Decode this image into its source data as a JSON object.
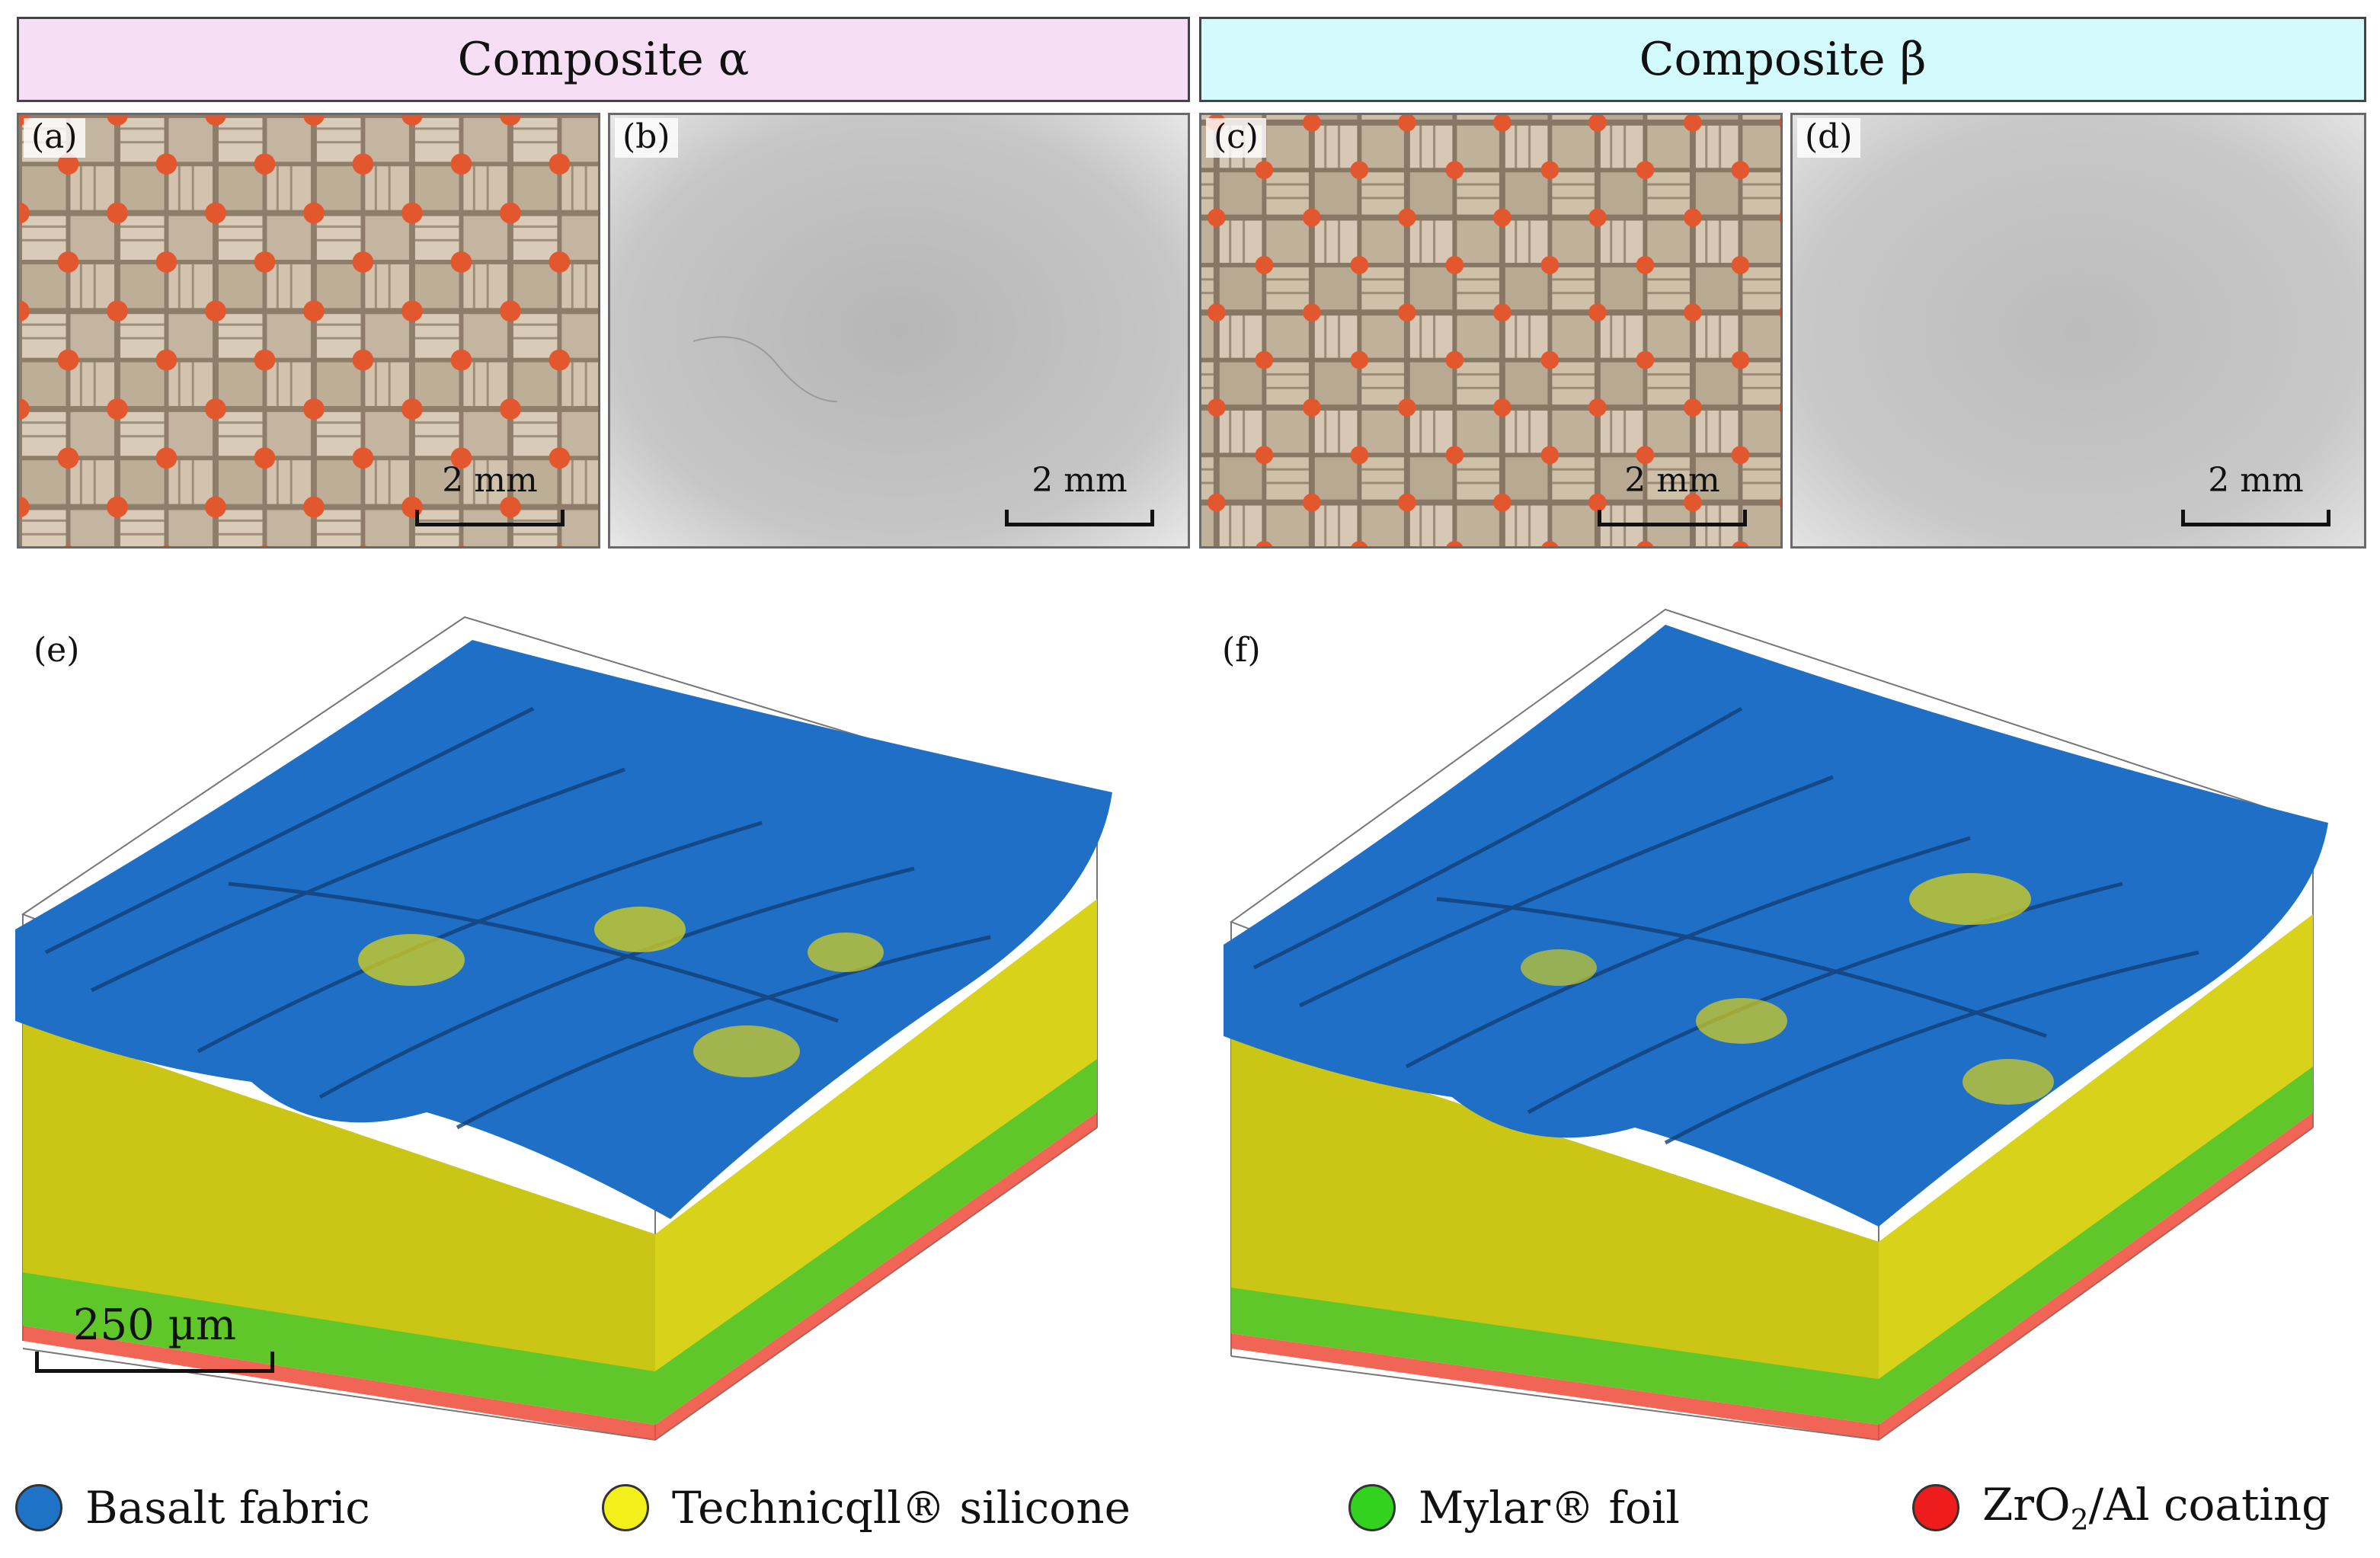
{
  "headers": {
    "alpha": "Composite α",
    "beta": "Composite β"
  },
  "panels": {
    "a": {
      "label": "(a)",
      "scale": "2 mm"
    },
    "b": {
      "label": "(b)",
      "scale": "2 mm"
    },
    "c": {
      "label": "(c)",
      "scale": "2 mm"
    },
    "d": {
      "label": "(d)",
      "scale": "2 mm"
    },
    "e": {
      "label": "(e)"
    },
    "f": {
      "label": "(f)"
    }
  },
  "scale_3d": "250 µm",
  "legend": [
    {
      "text": "Basalt fabric",
      "color": "#1f73c6"
    },
    {
      "text": "Technicqll® silicone",
      "color": "#f2ef1a"
    },
    {
      "text": "Mylar® foil",
      "color": "#33d21e"
    },
    {
      "text_pre": "ZrO",
      "text_sub": "2",
      "text_post": "/Al coating",
      "color": "#ee1c1c"
    }
  ],
  "colors": {
    "header_alpha": "#f6dff4",
    "header_beta": "#d3fbfd",
    "fabric_tan": "#c9b8a2",
    "silicone_dots": "#e2572d"
  }
}
